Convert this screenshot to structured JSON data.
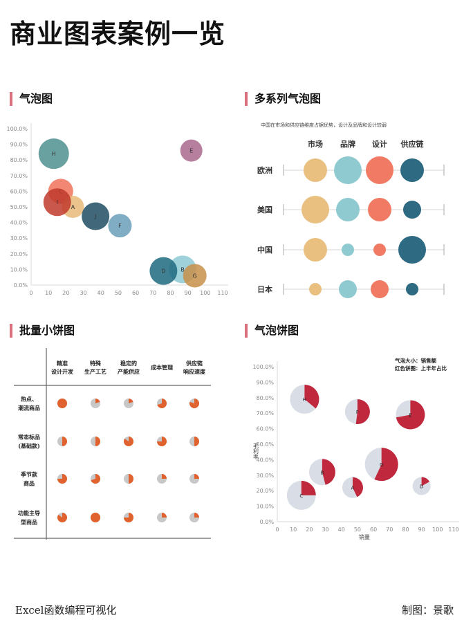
{
  "page_title": "商业图表案例一览",
  "footer": {
    "left": "Excel函数编程可视化",
    "right": "制图：景歌"
  },
  "colors": {
    "section_bar": "#d9707d",
    "pie_orange": "#e0622e",
    "pie_grey": "#c8c8c8",
    "pie_red": "#c0283e",
    "pie_light": "#d9dde6"
  },
  "chart_data": [
    {
      "section_title": "气泡图",
      "type": "scatter",
      "xlim": [
        0,
        110
      ],
      "ylim": [
        0,
        1
      ],
      "xticks": [
        "0",
        "10",
        "20",
        "30",
        "40",
        "50",
        "60",
        "70",
        "80",
        "90",
        "100",
        "110"
      ],
      "yticks": [
        "0.0%",
        "10.0%",
        "20.0%",
        "30.0%",
        "40.0%",
        "50.0%",
        "60.0%",
        "70.0%",
        "80.0%",
        "90.0%",
        "100.0%"
      ],
      "points": [
        {
          "label": "H",
          "x": 13,
          "y": 0.84,
          "size": 22,
          "color": "#4f8f8f"
        },
        {
          "label": "C",
          "x": 17,
          "y": 0.6,
          "size": 18,
          "color": "#f0735a"
        },
        {
          "label": "A",
          "x": 24,
          "y": 0.5,
          "size": 16,
          "color": "#e8b978"
        },
        {
          "label": "I",
          "x": 15,
          "y": 0.53,
          "size": 20,
          "color": "#c0392b"
        },
        {
          "label": "J",
          "x": 37,
          "y": 0.44,
          "size": 20,
          "color": "#1e4d63"
        },
        {
          "label": "F",
          "x": 51,
          "y": 0.38,
          "size": 17,
          "color": "#6a9fba"
        },
        {
          "label": "E",
          "x": 92,
          "y": 0.86,
          "size": 16,
          "color": "#a8688c"
        },
        {
          "label": "B",
          "x": 87,
          "y": 0.1,
          "size": 20,
          "color": "#8ec9d4"
        },
        {
          "label": "D",
          "x": 76,
          "y": 0.09,
          "size": 20,
          "color": "#1e6a80"
        },
        {
          "label": "G",
          "x": 94,
          "y": 0.06,
          "size": 17,
          "color": "#c8914a"
        }
      ]
    },
    {
      "section_title": "多系列气泡图",
      "type": "scatter",
      "subtitle": "中国在市场和供应链维度占据优势，设计及品牌和设计较弱",
      "categories": [
        "市场",
        "品牌",
        "设计",
        "供应链"
      ],
      "rows": [
        "欧洲",
        "美国",
        "中国",
        "日本"
      ],
      "series_colors": [
        "#e9c07f",
        "#8fcad1",
        "#f07a63",
        "#2e6b82"
      ],
      "values": [
        [
          17,
          20,
          20,
          17
        ],
        [
          20,
          17,
          17,
          13
        ],
        [
          17,
          9,
          9,
          20
        ],
        [
          9,
          13,
          13,
          9
        ]
      ]
    },
    {
      "section_title": "批量小饼图",
      "type": "table",
      "columns": [
        "精准\n设计开发",
        "特殊\n生产工艺",
        "稳定的\n产能供应",
        "成本管理",
        "供应链\n响应速度"
      ],
      "rows": [
        "热点、\n潮流商品",
        "常态标品\n(基础款)",
        "季节款\n商品",
        "功能主导\n型商品"
      ],
      "values": [
        [
          1.0,
          0.2,
          0.2,
          0.7,
          0.8
        ],
        [
          0.5,
          0.5,
          0.85,
          0.75,
          0.5
        ],
        [
          0.75,
          0.7,
          0.5,
          0.25,
          0.25
        ],
        [
          0.85,
          1.0,
          0.75,
          0.25,
          0.25
        ]
      ]
    },
    {
      "section_title": "气泡饼图",
      "type": "scatter",
      "xlabel": "销量",
      "ylabel": "毛利率",
      "legend": [
        "气泡大小：销售额",
        "红色饼图：上半年占比"
      ],
      "xlim": [
        0,
        110
      ],
      "ylim": [
        0,
        1
      ],
      "xticks": [
        "0",
        "10",
        "20",
        "30",
        "40",
        "50",
        "60",
        "70",
        "80",
        "90",
        "100",
        "110"
      ],
      "yticks": [
        "0.0%",
        "10.0%",
        "20.0%",
        "30.0%",
        "40.0%",
        "50.0%",
        "60.0%",
        "70.0%",
        "80.0%",
        "90.0%",
        "100.0%"
      ],
      "points": [
        {
          "label": "H",
          "x": 17,
          "y": 0.79,
          "size": 21,
          "share": 0.36
        },
        {
          "label": "F",
          "x": 50,
          "y": 0.71,
          "size": 18,
          "share": 0.52
        },
        {
          "label": "E",
          "x": 83,
          "y": 0.69,
          "size": 21,
          "share": 0.72
        },
        {
          "label": "B",
          "x": 28,
          "y": 0.32,
          "size": 19,
          "share": 0.46
        },
        {
          "label": "G",
          "x": 65,
          "y": 0.37,
          "size": 24,
          "share": 0.57
        },
        {
          "label": "A",
          "x": 47,
          "y": 0.22,
          "size": 15,
          "share": 0.43
        },
        {
          "label": "C",
          "x": 15,
          "y": 0.17,
          "size": 21,
          "share": 0.25
        },
        {
          "label": "D",
          "x": 90,
          "y": 0.23,
          "size": 13,
          "share": 0.17
        }
      ]
    }
  ]
}
